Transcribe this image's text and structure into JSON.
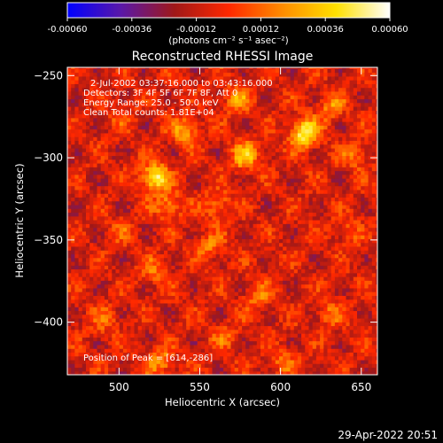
{
  "chart_data": {
    "type": "heatmap",
    "colorbar": {
      "ticks": [
        "-0.00060",
        "-0.00036",
        "-0.00012",
        "0.00012",
        "0.00036",
        "0.00060"
      ],
      "range": [
        -0.0006,
        0.0006
      ],
      "label": "(photons cm⁻² s⁻¹ asec⁻²)",
      "colors": [
        "#0000ff",
        "#5a18a8",
        "#a01818",
        "#ff2800",
        "#ff8c00",
        "#ffe000",
        "#ffffff"
      ]
    },
    "title": "Reconstructed RHESSI Image",
    "xlabel": "Heliocentric X (arcsec)",
    "ylabel": "Heliocentric Y (arcsec)",
    "xlim": [
      468,
      660
    ],
    "ylim": [
      -432,
      -245
    ],
    "x_ticks": [
      500,
      550,
      600,
      650
    ],
    "y_ticks": [
      -250,
      -300,
      -350,
      -400
    ],
    "info_lines": [
      "2-Jul-2002 03:37:16.000 to 03:43:16.000",
      "Detectors: 3F 4F 5F 6F 7F 8F, Att 0",
      "Energy Range: 25.0 - 50.0 keV",
      "Clean     Total counts: 1.81E+04"
    ],
    "peak_label": "Position of Peak = [614,-286]",
    "peak": [
      614,
      -286
    ],
    "sources": [
      {
        "x": 614,
        "y": -286,
        "flux": 0.0006
      },
      {
        "x": 521,
        "y": -313,
        "flux": 0.00056
      },
      {
        "x": 540,
        "y": -285,
        "flux": 0.00036
      },
      {
        "x": 577,
        "y": -300,
        "flux": 0.0004
      },
      {
        "x": 572,
        "y": -265,
        "flux": 0.0003
      },
      {
        "x": 530,
        "y": -330,
        "flux": 0.0003
      },
      {
        "x": 560,
        "y": -330,
        "flux": 0.00026
      },
      {
        "x": 630,
        "y": -270,
        "flux": 0.00026
      },
      {
        "x": 645,
        "y": -300,
        "flux": 0.00022
      },
      {
        "x": 555,
        "y": -355,
        "flux": 0.00022
      },
      {
        "x": 520,
        "y": -370,
        "flux": 0.0002
      },
      {
        "x": 490,
        "y": -400,
        "flux": 0.00018
      },
      {
        "x": 585,
        "y": -385,
        "flux": 0.00022
      },
      {
        "x": 630,
        "y": -395,
        "flux": 0.0002
      },
      {
        "x": 525,
        "y": -425,
        "flux": 0.0003
      },
      {
        "x": 600,
        "y": -425,
        "flux": 0.0002
      },
      {
        "x": 500,
        "y": -345,
        "flux": 0.00012
      },
      {
        "x": 640,
        "y": -345,
        "flux": 0.00016
      },
      {
        "x": 565,
        "y": -410,
        "flux": 0.00016
      },
      {
        "x": 500,
        "y": -275,
        "flux": 0.00014
      }
    ]
  },
  "footer": {
    "timestamp": "29-Apr-2022 20:51"
  }
}
